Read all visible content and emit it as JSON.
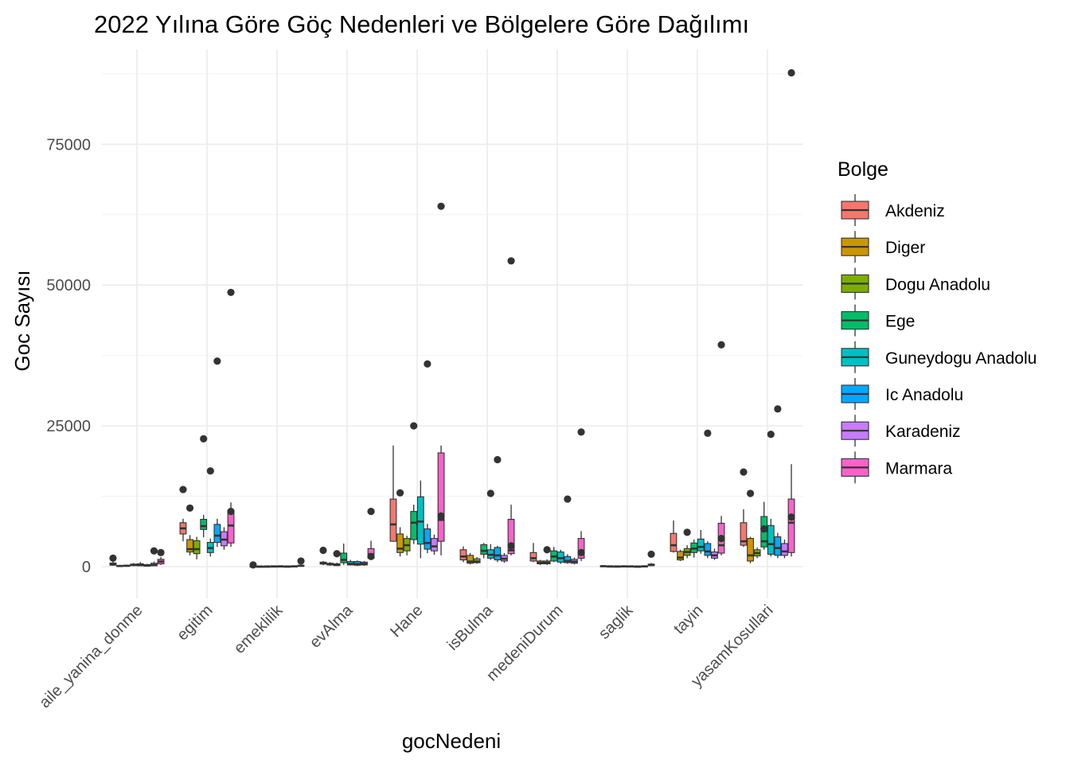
{
  "chart_data": {
    "type": "boxplot",
    "title": "2022 Yılına Göre Göç Nedenleri ve Bölgelere Göre Dağılımı",
    "xlabel": "gocNedeni",
    "ylabel": "Goc Sayısı",
    "ylim": [
      -4000,
      92000
    ],
    "y_ticks": [
      0,
      25000,
      50000,
      75000
    ],
    "y_tick_labels": [
      "0",
      "25000",
      "50000",
      "75000"
    ],
    "grid": true,
    "legend": {
      "title": "Bolge",
      "position": "right"
    },
    "categories": [
      "aile_yanina_donme",
      "egitim",
      "emeklilik",
      "evAlma",
      "Hane",
      "isBulma",
      "medeniDurum",
      "saglik",
      "tayin",
      "yasamKosullari"
    ],
    "series": [
      {
        "name": "Akdeniz",
        "color": "#F8766D",
        "boxes": [
          {
            "min": 150,
            "q1": 250,
            "median": 400,
            "q3": 650,
            "max": 900,
            "outliers": [
              1500
            ]
          },
          {
            "min": 4500,
            "q1": 5800,
            "median": 6800,
            "q3": 7800,
            "max": 8500,
            "outliers": [
              13700
            ]
          },
          {
            "min": 20,
            "q1": 40,
            "median": 60,
            "q3": 90,
            "max": 140,
            "outliers": [
              300
            ]
          },
          {
            "min": 250,
            "q1": 450,
            "median": 600,
            "q3": 800,
            "max": 1000,
            "outliers": [
              2900
            ]
          },
          {
            "min": 4500,
            "q1": 4500,
            "median": 7500,
            "q3": 12000,
            "max": 21500,
            "outliers": []
          },
          {
            "min": 800,
            "q1": 1200,
            "median": 1800,
            "q3": 3000,
            "max": 3600,
            "outliers": []
          },
          {
            "min": 800,
            "q1": 1000,
            "median": 1500,
            "q3": 2500,
            "max": 4200,
            "outliers": []
          },
          {
            "min": 20,
            "q1": 50,
            "median": 80,
            "q3": 150,
            "max": 250,
            "outliers": []
          },
          {
            "min": 2500,
            "q1": 2700,
            "median": 3800,
            "q3": 5900,
            "max": 8200,
            "outliers": []
          },
          {
            "min": 3500,
            "q1": 3800,
            "median": 4500,
            "q3": 7800,
            "max": 10200,
            "outliers": [
              16800
            ]
          }
        ]
      },
      {
        "name": "Diger",
        "color": "#CD9600",
        "boxes": [
          {
            "min": 40,
            "q1": 80,
            "median": 120,
            "q3": 200,
            "max": 300,
            "outliers": []
          },
          {
            "min": 2000,
            "q1": 2600,
            "median": 3100,
            "q3": 4800,
            "max": 5600,
            "outliers": [
              10400
            ]
          },
          {
            "min": 10,
            "q1": 20,
            "median": 30,
            "q3": 50,
            "max": 70,
            "outliers": []
          },
          {
            "min": 150,
            "q1": 300,
            "median": 400,
            "q3": 600,
            "max": 800,
            "outliers": []
          },
          {
            "min": 1800,
            "q1": 2500,
            "median": 3200,
            "q3": 5800,
            "max": 7000,
            "outliers": [
              13100
            ]
          },
          {
            "min": 400,
            "q1": 600,
            "median": 900,
            "q3": 2000,
            "max": 2400,
            "outliers": []
          },
          {
            "min": 300,
            "q1": 500,
            "median": 700,
            "q3": 1000,
            "max": 1200,
            "outliers": []
          },
          {
            "min": 10,
            "q1": 30,
            "median": 50,
            "q3": 80,
            "max": 120,
            "outliers": []
          },
          {
            "min": 1000,
            "q1": 1200,
            "median": 1600,
            "q3": 2700,
            "max": 3000,
            "outliers": []
          },
          {
            "min": 600,
            "q1": 1000,
            "median": 2000,
            "q3": 5000,
            "max": 5300,
            "outliers": [
              13000
            ]
          }
        ]
      },
      {
        "name": "Dogu Anadolu",
        "color": "#7CAE00",
        "boxes": [
          {
            "min": 60,
            "q1": 100,
            "median": 150,
            "q3": 250,
            "max": 350,
            "outliers": []
          },
          {
            "min": 1300,
            "q1": 2300,
            "median": 3100,
            "q3": 4600,
            "max": 5300,
            "outliers": []
          },
          {
            "min": 15,
            "q1": 25,
            "median": 35,
            "q3": 55,
            "max": 80,
            "outliers": []
          },
          {
            "min": 100,
            "q1": 200,
            "median": 300,
            "q3": 500,
            "max": 700,
            "outliers": [
              2300
            ]
          },
          {
            "min": 2000,
            "q1": 2800,
            "median": 3800,
            "q3": 5000,
            "max": 5500,
            "outliers": []
          },
          {
            "min": 500,
            "q1": 700,
            "median": 900,
            "q3": 1400,
            "max": 1700,
            "outliers": []
          },
          {
            "min": 300,
            "q1": 500,
            "median": 700,
            "q3": 1000,
            "max": 1300,
            "outliers": [
              3000
            ]
          },
          {
            "min": 10,
            "q1": 20,
            "median": 40,
            "q3": 70,
            "max": 100,
            "outliers": []
          },
          {
            "min": 1500,
            "q1": 2000,
            "median": 2600,
            "q3": 3200,
            "max": 3800,
            "outliers": [
              6100
            ]
          },
          {
            "min": 1500,
            "q1": 1900,
            "median": 2400,
            "q3": 3000,
            "max": 3400,
            "outliers": []
          }
        ]
      },
      {
        "name": "Ege",
        "color": "#00BE67",
        "boxes": [
          {
            "min": 100,
            "q1": 180,
            "median": 300,
            "q3": 450,
            "max": 650,
            "outliers": []
          },
          {
            "min": 5200,
            "q1": 6600,
            "median": 7200,
            "q3": 8400,
            "max": 9200,
            "outliers": [
              22700
            ]
          },
          {
            "min": 15,
            "q1": 30,
            "median": 50,
            "q3": 80,
            "max": 110,
            "outliers": []
          },
          {
            "min": 300,
            "q1": 700,
            "median": 1200,
            "q3": 2400,
            "max": 4100,
            "outliers": []
          },
          {
            "min": 4000,
            "q1": 4800,
            "median": 7800,
            "q3": 9800,
            "max": 11000,
            "outliers": [
              25000
            ]
          },
          {
            "min": 1500,
            "q1": 2200,
            "median": 2800,
            "q3": 3900,
            "max": 4200,
            "outliers": []
          },
          {
            "min": 800,
            "q1": 1000,
            "median": 1800,
            "q3": 2800,
            "max": 3500,
            "outliers": []
          },
          {
            "min": 20,
            "q1": 40,
            "median": 60,
            "q3": 100,
            "max": 150,
            "outliers": []
          },
          {
            "min": 1600,
            "q1": 2500,
            "median": 3200,
            "q3": 4200,
            "max": 4800,
            "outliers": []
          },
          {
            "min": 3000,
            "q1": 3500,
            "median": 4500,
            "q3": 8900,
            "max": 11500,
            "outliers": [
              6700
            ]
          }
        ]
      },
      {
        "name": "Guneydogu Anadolu",
        "color": "#00BFC4",
        "boxes": [
          {
            "min": 80,
            "q1": 150,
            "median": 250,
            "q3": 500,
            "max": 800,
            "outliers": []
          },
          {
            "min": 1800,
            "q1": 2500,
            "median": 3300,
            "q3": 4300,
            "max": 5000,
            "outliers": [
              17000
            ]
          },
          {
            "min": 20,
            "q1": 40,
            "median": 60,
            "q3": 90,
            "max": 130,
            "outliers": []
          },
          {
            "min": 200,
            "q1": 300,
            "median": 500,
            "q3": 900,
            "max": 1200,
            "outliers": []
          },
          {
            "min": 1500,
            "q1": 4000,
            "median": 8000,
            "q3": 12400,
            "max": 15300,
            "outliers": []
          },
          {
            "min": 1200,
            "q1": 1500,
            "median": 2100,
            "q3": 3000,
            "max": 4000,
            "outliers": [
              13000
            ]
          },
          {
            "min": 500,
            "q1": 800,
            "median": 1500,
            "q3": 2600,
            "max": 3000,
            "outliers": []
          },
          {
            "min": 10,
            "q1": 30,
            "median": 50,
            "q3": 90,
            "max": 130,
            "outliers": []
          },
          {
            "min": 2300,
            "q1": 2800,
            "median": 3500,
            "q3": 4900,
            "max": 6500,
            "outliers": []
          },
          {
            "min": 1800,
            "q1": 2200,
            "median": 4000,
            "q3": 7300,
            "max": 8500,
            "outliers": [
              23500
            ]
          }
        ]
      },
      {
        "name": "Ic Anadolu",
        "color": "#00A9FF",
        "boxes": [
          {
            "min": 60,
            "q1": 100,
            "median": 200,
            "q3": 350,
            "max": 500,
            "outliers": []
          },
          {
            "min": 3500,
            "q1": 4300,
            "median": 5500,
            "q3": 7500,
            "max": 8500,
            "outliers": [
              36500
            ]
          },
          {
            "min": 10,
            "q1": 20,
            "median": 35,
            "q3": 60,
            "max": 90,
            "outliers": []
          },
          {
            "min": 100,
            "q1": 250,
            "median": 450,
            "q3": 900,
            "max": 1100,
            "outliers": []
          },
          {
            "min": 2400,
            "q1": 3100,
            "median": 4200,
            "q3": 6700,
            "max": 7600,
            "outliers": [
              36000
            ]
          },
          {
            "min": 800,
            "q1": 1200,
            "median": 2000,
            "q3": 3400,
            "max": 3700,
            "outliers": [
              19000
            ]
          },
          {
            "min": 500,
            "q1": 700,
            "median": 1000,
            "q3": 1800,
            "max": 2200,
            "outliers": [
              12000
            ]
          },
          {
            "min": 10,
            "q1": 20,
            "median": 30,
            "q3": 50,
            "max": 80,
            "outliers": []
          },
          {
            "min": 1500,
            "q1": 2000,
            "median": 2700,
            "q3": 4100,
            "max": 4500,
            "outliers": [
              23700
            ]
          },
          {
            "min": 1500,
            "q1": 2000,
            "median": 3300,
            "q3": 5300,
            "max": 6000,
            "outliers": [
              28000
            ]
          }
        ]
      },
      {
        "name": "Karadeniz",
        "color": "#C77CFF",
        "boxes": [
          {
            "min": 80,
            "q1": 150,
            "median": 300,
            "q3": 600,
            "max": 900,
            "outliers": [
              2800
            ]
          },
          {
            "min": 3000,
            "q1": 3700,
            "median": 4800,
            "q3": 6200,
            "max": 7000,
            "outliers": []
          },
          {
            "min": 20,
            "q1": 40,
            "median": 60,
            "q3": 100,
            "max": 150,
            "outliers": []
          },
          {
            "min": 150,
            "q1": 300,
            "median": 500,
            "q3": 800,
            "max": 1000,
            "outliers": []
          },
          {
            "min": 2100,
            "q1": 2800,
            "median": 3600,
            "q3": 5000,
            "max": 5700,
            "outliers": []
          },
          {
            "min": 700,
            "q1": 1000,
            "median": 1400,
            "q3": 2000,
            "max": 2400,
            "outliers": []
          },
          {
            "min": 400,
            "q1": 600,
            "median": 900,
            "q3": 1300,
            "max": 1600,
            "outliers": []
          },
          {
            "min": 20,
            "q1": 40,
            "median": 60,
            "q3": 100,
            "max": 140,
            "outliers": []
          },
          {
            "min": 1200,
            "q1": 1500,
            "median": 2000,
            "q3": 2600,
            "max": 3200,
            "outliers": []
          },
          {
            "min": 1500,
            "q1": 2000,
            "median": 2700,
            "q3": 4100,
            "max": 4800,
            "outliers": []
          }
        ]
      },
      {
        "name": "Marmara",
        "color": "#FF61CC",
        "boxes": [
          {
            "min": 300,
            "q1": 500,
            "median": 900,
            "q3": 1300,
            "max": 1700,
            "outliers": [
              2500
            ]
          },
          {
            "min": 3500,
            "q1": 4200,
            "median": 7300,
            "q3": 9800,
            "max": 11400,
            "outliers": [
              9800,
              48700
            ]
          },
          {
            "min": 50,
            "q1": 80,
            "median": 150,
            "q3": 250,
            "max": 350,
            "outliers": [
              1000
            ]
          },
          {
            "min": 1200,
            "q1": 1500,
            "median": 2200,
            "q3": 3200,
            "max": 4600,
            "outliers": [
              1800,
              9800
            ]
          },
          {
            "min": 2000,
            "q1": 4500,
            "median": 8300,
            "q3": 20200,
            "max": 21500,
            "outliers": [
              9000,
              64000
            ]
          },
          {
            "min": 2000,
            "q1": 2300,
            "median": 2900,
            "q3": 8400,
            "max": 11000,
            "outliers": [
              3700,
              54300
            ]
          },
          {
            "min": 1000,
            "q1": 1500,
            "median": 2200,
            "q3": 5000,
            "max": 6300,
            "outliers": [
              2500,
              23900
            ]
          },
          {
            "min": 100,
            "q1": 180,
            "median": 300,
            "q3": 450,
            "max": 650,
            "outliers": [
              2200
            ]
          },
          {
            "min": 2000,
            "q1": 2400,
            "median": 3800,
            "q3": 7700,
            "max": 9000,
            "outliers": [
              5000,
              39400
            ]
          },
          {
            "min": 1800,
            "q1": 2500,
            "median": 7800,
            "q3": 12000,
            "max": 18200,
            "outliers": [
              8800,
              87700
            ]
          }
        ]
      }
    ]
  }
}
